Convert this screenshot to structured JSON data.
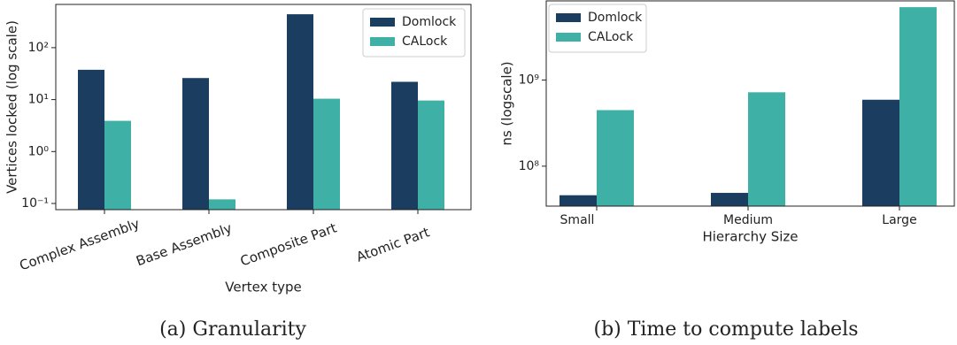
{
  "chart_data": [
    {
      "type": "bar",
      "log_y": true,
      "legend": "upper right",
      "caption": "(a) Granularity",
      "xlabel": "Vertex type",
      "ylabel": "Vertices locked (log scale)",
      "categories": [
        "Complex Assembly",
        "Base Assembly",
        "Composite Part",
        "Atomic Part"
      ],
      "series": [
        {
          "name": "Domlock",
          "color": "#1b3d5f",
          "values": [
            37.5,
            26,
            440,
            22
          ]
        },
        {
          "name": "CALock",
          "color": "#3fb0a5",
          "values": [
            3.9,
            0.12,
            10.4,
            9.6
          ]
        }
      ],
      "ylim": [
        0.076,
        680
      ],
      "yticks": [
        {
          "value": 0.1,
          "label": "10⁻¹"
        },
        {
          "value": 1,
          "label": "10⁰"
        },
        {
          "value": 10,
          "label": "10¹"
        },
        {
          "value": 100,
          "label": "10²"
        }
      ]
    },
    {
      "type": "bar",
      "log_y": true,
      "legend": "upper left",
      "caption": "(b) Time to compute labels",
      "xlabel": "Hierarchy Size",
      "ylabel": "ns (logscale)",
      "categories": [
        "Small",
        "Medium",
        "Large"
      ],
      "series": [
        {
          "name": "Domlock",
          "color": "#1b3d5f",
          "values": [
            46000000,
            49000000,
            590000000
          ]
        },
        {
          "name": "CALock",
          "color": "#3fb0a5",
          "values": [
            447000000,
            720000000,
            7000000000
          ]
        }
      ],
      "ylim": [
        34400000,
        8280000000
      ],
      "yticks": [
        {
          "value": 100000000,
          "label": "10⁸"
        },
        {
          "value": 1000000000,
          "label": "10⁹"
        }
      ]
    }
  ]
}
